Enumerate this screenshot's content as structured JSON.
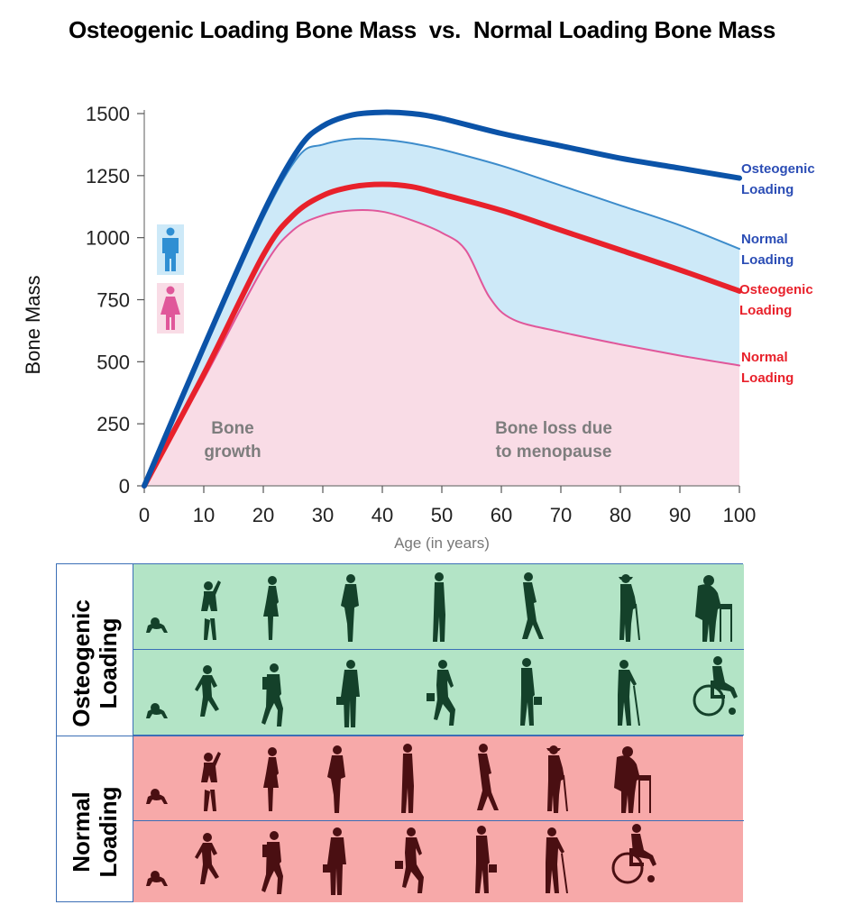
{
  "title": "Osteogenic Loading Bone Mass  vs.  Normal Loading Bone Mass",
  "colors": {
    "male_osteogenic": "#0b53a8",
    "male_normal": "#3d8ccb",
    "female_osteogenic": "#e8212b",
    "female_normal": "#e0579a",
    "male_fill": "#cde9f8",
    "female_fill": "#f9dce6",
    "osteo_band": "#b3e4c6",
    "normal_band": "#f7a9a9",
    "osteo_fig": "#14412a",
    "normal_fig": "#4a0f12"
  },
  "chart_data": {
    "type": "line",
    "xlabel": "Age (in years)",
    "ylabel": "Bone Mass",
    "xlim": [
      0,
      100
    ],
    "ylim": [
      0,
      1500
    ],
    "xticks": [
      0,
      10,
      20,
      30,
      40,
      50,
      60,
      70,
      80,
      90,
      100
    ],
    "yticks": [
      0,
      250,
      500,
      750,
      1000,
      1250,
      1500
    ],
    "series": [
      {
        "key": "male_osteogenic",
        "x": [
          0,
          10,
          20,
          26,
          30,
          35,
          40,
          45,
          50,
          60,
          70,
          80,
          90,
          100
        ],
        "y": [
          0,
          560,
          1100,
          1360,
          1450,
          1495,
          1505,
          1500,
          1480,
          1420,
          1370,
          1320,
          1280,
          1240
        ]
      },
      {
        "key": "male_normal",
        "x": [
          0,
          10,
          20,
          26,
          30,
          35,
          40,
          45,
          50,
          60,
          70,
          80,
          90,
          100
        ],
        "y": [
          0,
          545,
          1080,
          1330,
          1375,
          1398,
          1395,
          1380,
          1355,
          1290,
          1210,
          1130,
          1050,
          955
        ]
      },
      {
        "key": "female_osteogenic",
        "x": [
          0,
          10,
          20,
          25,
          30,
          35,
          40,
          45,
          50,
          60,
          70,
          80,
          90,
          100
        ],
        "y": [
          0,
          450,
          930,
          1090,
          1170,
          1205,
          1215,
          1205,
          1175,
          1110,
          1030,
          950,
          870,
          785
        ]
      },
      {
        "key": "female_normal",
        "x": [
          0,
          10,
          20,
          25,
          30,
          35,
          40,
          45,
          50,
          54,
          58,
          62,
          70,
          80,
          90,
          100
        ],
        "y": [
          0,
          430,
          880,
          1030,
          1090,
          1110,
          1105,
          1070,
          1020,
          950,
          760,
          670,
          620,
          570,
          525,
          485
        ]
      }
    ],
    "line_labels": [
      {
        "key": "male_osteogenic",
        "lines": [
          "Osteogenic",
          "Loading"
        ]
      },
      {
        "key": "male_normal",
        "lines": [
          "Normal",
          "Loading"
        ]
      },
      {
        "key": "female_osteogenic",
        "lines": [
          "Osteogenic",
          "Loading"
        ]
      },
      {
        "key": "female_normal",
        "lines": [
          "Normal",
          "Loading"
        ]
      }
    ],
    "annotations": [
      {
        "lines": [
          "Bone",
          "growth"
        ]
      },
      {
        "lines": [
          "Bone loss due",
          "to menopause"
        ]
      }
    ]
  },
  "panel": {
    "osteogenic_label": [
      "Osteogenic",
      "Loading"
    ],
    "normal_label": [
      "Normal",
      "Loading"
    ],
    "rows": [
      {
        "band": "osteogenic",
        "track": "female",
        "figures": [
          "baby-crawling-icon",
          "girl-playing-icon",
          "young-woman-icon",
          "woman-standing-icon",
          "woman-profile-icon",
          "woman-walking-icon",
          "elderly-woman-cane-icon",
          "elderly-woman-walker-icon"
        ]
      },
      {
        "band": "osteogenic",
        "track": "male",
        "figures": [
          "baby-crawling-icon",
          "boy-running-icon",
          "teen-backpack-icon",
          "man-briefcase-icon",
          "man-running-briefcase-icon",
          "man-walking-icon",
          "elderly-man-cane-icon",
          "man-wheelchair-icon"
        ]
      },
      {
        "band": "normal",
        "track": "female",
        "figures": [
          "baby-crawling-icon",
          "girl-playing-icon",
          "young-woman-icon",
          "woman-standing-icon",
          "woman-profile-icon",
          "woman-walking-icon",
          "elderly-woman-cane-icon",
          "elderly-woman-walker-icon"
        ]
      },
      {
        "band": "normal",
        "track": "male",
        "figures": [
          "baby-crawling-icon",
          "boy-running-icon",
          "teen-backpack-icon",
          "man-briefcase-icon",
          "man-running-briefcase-icon",
          "man-walking-icon",
          "elderly-man-cane-icon",
          "man-wheelchair-icon"
        ]
      }
    ]
  }
}
